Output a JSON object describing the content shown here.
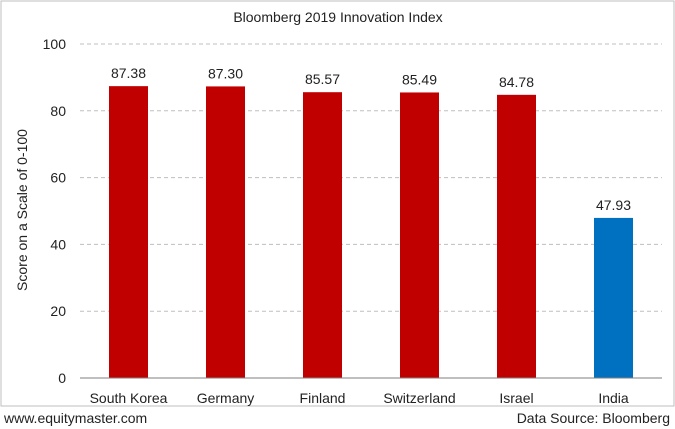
{
  "chart_data": {
    "type": "bar",
    "title": "Bloomberg 2019 Innovation Index",
    "ylabel": "Score on a Scale of 0-100",
    "xlabel": "",
    "ylim": [
      0,
      100
    ],
    "yticks": [
      0,
      20,
      40,
      60,
      80,
      100
    ],
    "grid": true,
    "categories": [
      "South Korea",
      "Germany",
      "Finland",
      "Switzerland",
      "Israel",
      "India"
    ],
    "values": [
      87.38,
      87.3,
      85.57,
      85.49,
      84.78,
      47.93
    ],
    "value_labels": [
      "87.38",
      "87.30",
      "85.57",
      "85.49",
      "84.78",
      "47.93"
    ],
    "colors": [
      "#c00000",
      "#c00000",
      "#c00000",
      "#c00000",
      "#c00000",
      "#0070c0"
    ]
  },
  "footer": {
    "left": "www.equitymaster.com",
    "right": "Data Source: Bloomberg"
  }
}
